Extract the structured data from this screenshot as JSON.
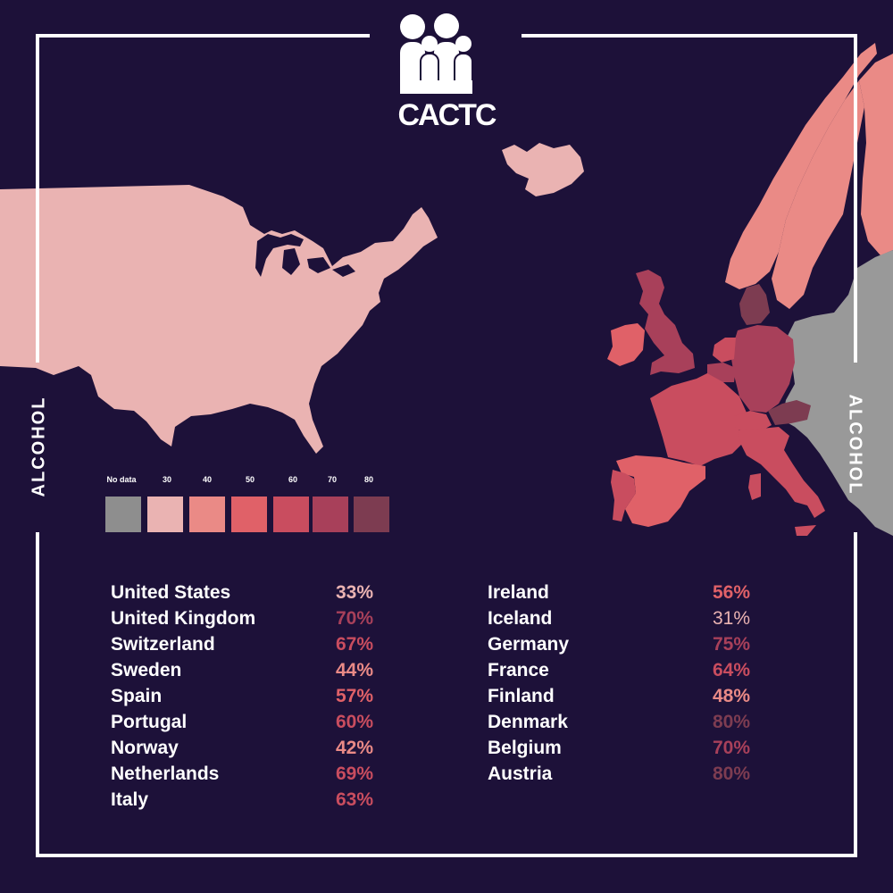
{
  "brand": {
    "logo_text": "CACTC"
  },
  "side_labels": {
    "left": "ALCOHOL",
    "right": "ALCOHOL"
  },
  "colors": {
    "background": "#1d1139",
    "no_data": "#8e8e8e",
    "scale": [
      "#eab3b2",
      "#ea8a86",
      "#e06168",
      "#c94d5f",
      "#a8405a",
      "#7d3c51"
    ],
    "neighbors_gray": "#999999"
  },
  "legend": [
    {
      "label": "No data",
      "color": "#8e8e8e"
    },
    {
      "label": "30",
      "color": "#eab3b2"
    },
    {
      "label": "40",
      "color": "#ea8a86"
    },
    {
      "label": "50",
      "color": "#e06168"
    },
    {
      "label": "60",
      "color": "#c94d5f"
    },
    {
      "label": "70",
      "color": "#a8405a"
    },
    {
      "label": "80",
      "color": "#7d3c51"
    }
  ],
  "countries_left": [
    {
      "name": "United States",
      "value": "33%",
      "color": "#eab3b2"
    },
    {
      "name": "United Kingdom",
      "value": "70%",
      "color": "#a8405a"
    },
    {
      "name": "Switzerland",
      "value": "67%",
      "color": "#c94d5f"
    },
    {
      "name": "Sweden",
      "value": "44%",
      "color": "#ea8a86"
    },
    {
      "name": "Spain",
      "value": "57%",
      "color": "#e06168"
    },
    {
      "name": "Portugal",
      "value": "60%",
      "color": "#c94d5f"
    },
    {
      "name": "Norway",
      "value": "42%",
      "color": "#ea8a86"
    },
    {
      "name": "Netherlands",
      "value": "69%",
      "color": "#c94d5f"
    },
    {
      "name": "Italy",
      "value": "63%",
      "color": "#c94d5f"
    }
  ],
  "countries_right": [
    {
      "name": "Ireland",
      "value": "56%",
      "color": "#e06168"
    },
    {
      "name": "Iceland",
      "value": "31%",
      "color": "#eab3b2"
    },
    {
      "name": "Germany",
      "value": "75%",
      "color": "#a8405a"
    },
    {
      "name": "France",
      "value": "64%",
      "color": "#c94d5f"
    },
    {
      "name": "Finland",
      "value": "48%",
      "color": "#ea8a86"
    },
    {
      "name": "Denmark",
      "value": "80%",
      "color": "#7d3c51"
    },
    {
      "name": "Belgium",
      "value": "70%",
      "color": "#a8405a"
    },
    {
      "name": "Austria",
      "value": "80%",
      "color": "#7d3c51"
    }
  ]
}
